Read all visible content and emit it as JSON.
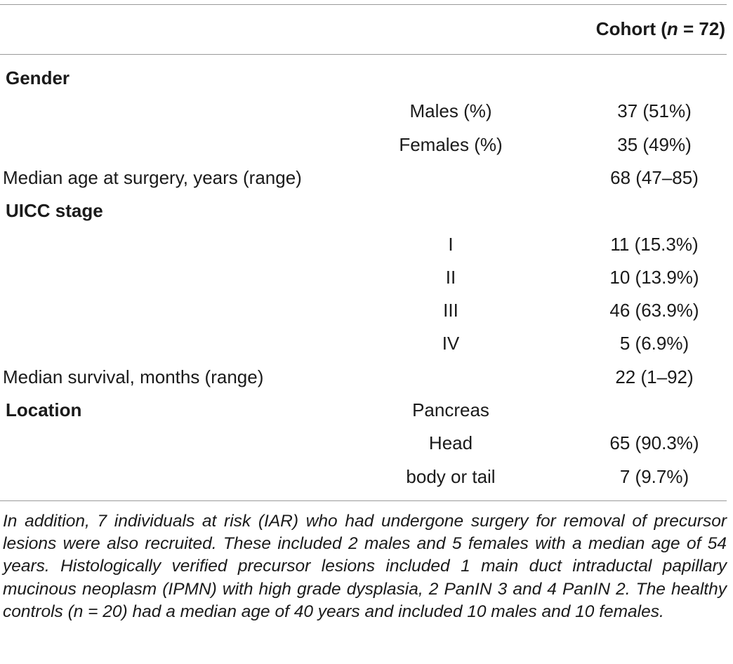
{
  "table": {
    "header": {
      "label": "Cohort (",
      "n_symbol": "n",
      "count": " = 72)"
    },
    "rows": [
      {
        "section": "Gender",
        "label": "",
        "mid": "",
        "value": ""
      },
      {
        "section": "",
        "label": "",
        "mid": "Males (%)",
        "value": "37 (51%)"
      },
      {
        "section": "",
        "label": "",
        "mid": "Females (%)",
        "value": "35 (49%)"
      },
      {
        "section": "",
        "label": "Median age at surgery, years (range)",
        "mid": "",
        "value": "68 (47–85)"
      },
      {
        "section": "UICC stage",
        "label": "",
        "mid": "",
        "value": ""
      },
      {
        "section": "",
        "label": "",
        "mid": "I",
        "value": "11 (15.3%)"
      },
      {
        "section": "",
        "label": "",
        "mid": "II",
        "value": "10 (13.9%)"
      },
      {
        "section": "",
        "label": "",
        "mid": "III",
        "value": "46 (63.9%)"
      },
      {
        "section": "",
        "label": "",
        "mid": "IV",
        "value": "5 (6.9%)"
      },
      {
        "section": "",
        "label": "Median survival, months (range)",
        "mid": "",
        "value": "22 (1–92)"
      },
      {
        "section": "Location",
        "label": "",
        "mid": "Pancreas",
        "value": ""
      },
      {
        "section": "",
        "label": "",
        "mid": "Head",
        "value": "65 (90.3%)"
      },
      {
        "section": "",
        "label": "",
        "mid": "body or tail",
        "value": "7 (9.7%)"
      }
    ]
  },
  "footnote": "In addition, 7 individuals at risk (IAR) who had undergone surgery for removal of precursor lesions were also recruited. These included 2 males and 5 females with a median age of 54 years. Histologically verified precursor lesions included 1 main duct intraductal papillary mucinous neoplasm (IPMN) with high grade dysplasia, 2 PanIN 3 and 4 PanIN 2. The healthy controls (n = 20) had a median age of 40 years and included 10 males and 10 females."
}
